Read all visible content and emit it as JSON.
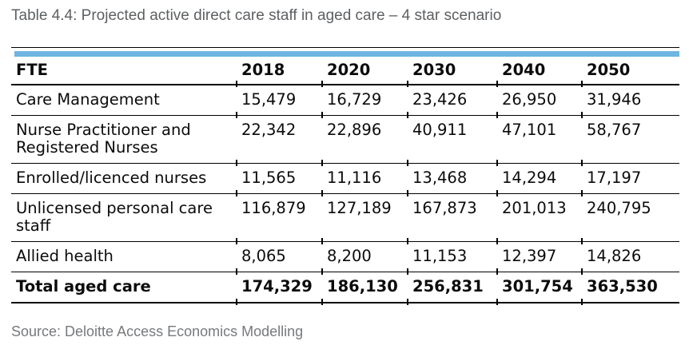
{
  "title": "Table 4.4: Projected active direct care staff in aged care – 4 star scenario",
  "source": "Source: Deloitte Access Economics Modelling",
  "colors": {
    "accent_band": "#6fb5e1",
    "title_text": "#5d6063",
    "source_text": "#77797c",
    "table_text": "#0b0b0b",
    "rule": "#000000"
  },
  "chart_data": {
    "type": "table",
    "title": "Table 4.4: Projected active direct care staff in aged care – 4 star scenario",
    "columns": [
      "FTE",
      "2018",
      "2020",
      "2030",
      "2040",
      "2050"
    ],
    "rows": [
      {
        "label": "Care Management",
        "values": [
          "15,479",
          "16,729",
          "23,426",
          "26,950",
          "31,946"
        ],
        "bold": false
      },
      {
        "label": "Nurse Practitioner and Registered Nurses",
        "values": [
          "22,342",
          "22,896",
          "40,911",
          "47,101",
          "58,767"
        ],
        "bold": false
      },
      {
        "label": "Enrolled/licenced nurses",
        "values": [
          "11,565",
          "11,116",
          "13,468",
          "14,294",
          "17,197"
        ],
        "bold": false
      },
      {
        "label": "Unlicensed personal care staff",
        "values": [
          "116,879",
          "127,189",
          "167,873",
          "201,013",
          "240,795"
        ],
        "bold": false
      },
      {
        "label": "Allied health",
        "values": [
          "8,065",
          "8,200",
          "11,153",
          "12,397",
          "14,826"
        ],
        "bold": false
      },
      {
        "label": "Total aged care",
        "values": [
          "174,329",
          "186,130",
          "256,831",
          "301,754",
          "363,530"
        ],
        "bold": true
      }
    ],
    "source": "Source: Deloitte Access Economics Modelling"
  }
}
